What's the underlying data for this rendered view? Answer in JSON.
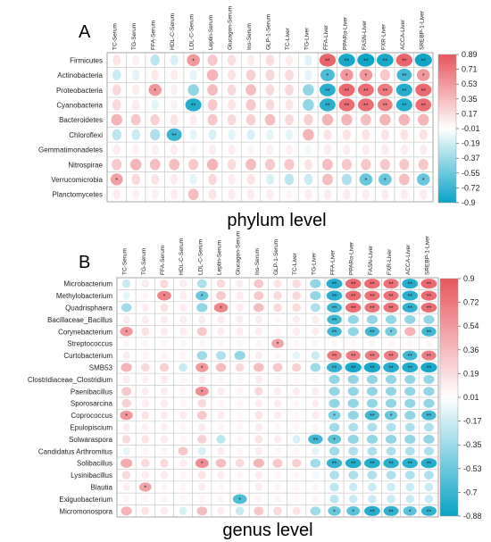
{
  "chart_data": [
    {
      "type": "heatmap",
      "panel_label": "A",
      "title": "phylum level",
      "columns": [
        "TC-Serum",
        "TG-Serum",
        "FFA-Serum",
        "HDL-C-Serum",
        "LDL-C-Serum",
        "Leptin-Serum",
        "Glucagon-Serum",
        "Ins-Serum",
        "GLP-1-Serum",
        "TC-Liver",
        "TG-Liver",
        "FFA-Liver",
        "PPARα-Liver",
        "FASN-Liver",
        "FXR-Liver",
        "ACCA-Liver",
        "SREBP-1-Liver"
      ],
      "rows": [
        "Firmicutes",
        "Actinobacteria",
        "Proteobacteria",
        "Cyanobacteria",
        "Bacteroidetes",
        "Chloroflexi",
        "Gemmatimonadetes",
        "Nitrospirae",
        "Verrucomicrobia",
        "Planctomycetes"
      ],
      "values": [
        [
          0.15,
          0.08,
          -0.25,
          -0.15,
          0.55,
          0.3,
          0.18,
          0.1,
          0.18,
          0.1,
          -0.12,
          0.82,
          -0.85,
          -0.88,
          -0.85,
          0.82,
          -0.88
        ],
        [
          -0.2,
          -0.1,
          0.12,
          0.1,
          -0.1,
          0.4,
          0.15,
          0.25,
          0.22,
          0.2,
          -0.1,
          -0.65,
          0.55,
          0.55,
          0.3,
          -0.7,
          0.55
        ],
        [
          0.2,
          0.1,
          0.55,
          0.08,
          -0.4,
          0.35,
          0.2,
          0.35,
          0.2,
          0.2,
          -0.4,
          -0.78,
          0.8,
          0.78,
          0.72,
          -0.8,
          0.8
        ],
        [
          0.2,
          0.1,
          -0.1,
          0.08,
          -0.8,
          0.3,
          0.15,
          0.3,
          0.2,
          0.15,
          -0.4,
          -0.78,
          0.78,
          0.78,
          0.7,
          -0.8,
          0.78
        ],
        [
          0.4,
          0.3,
          0.25,
          0.15,
          0.1,
          0.3,
          0.2,
          0.25,
          0.35,
          0.2,
          0.25,
          0.4,
          0.4,
          0.35,
          0.4,
          0.4,
          0.4
        ],
        [
          -0.25,
          -0.2,
          -0.3,
          -0.72,
          -0.1,
          -0.15,
          -0.1,
          -0.15,
          -0.1,
          -0.1,
          0.4,
          0.15,
          0.15,
          0.15,
          0.15,
          0.15,
          0.15
        ],
        [
          0.1,
          0.08,
          0.08,
          0.1,
          0.05,
          0.1,
          0.1,
          0.05,
          0.08,
          0.08,
          -0.05,
          0.1,
          0.1,
          0.1,
          0.1,
          0.1,
          0.1
        ],
        [
          0.3,
          0.4,
          0.35,
          0.35,
          0.3,
          0.4,
          0.2,
          0.35,
          0.3,
          0.3,
          0.15,
          0.35,
          0.3,
          0.3,
          0.3,
          0.3,
          0.3
        ],
        [
          0.5,
          0.2,
          0.15,
          0.1,
          -0.1,
          0.2,
          0.1,
          0.15,
          -0.15,
          -0.25,
          -0.2,
          0.35,
          -0.3,
          -0.55,
          -0.55,
          0.35,
          -0.55
        ],
        [
          0.1,
          0.08,
          0.08,
          0.1,
          0.35,
          0.15,
          0.1,
          0.1,
          0.1,
          0.05,
          0.1,
          0.1,
          0.1,
          0.1,
          0.1,
          0.1,
          0.1
        ]
      ],
      "color_scale": {
        "ticks": [
          0.89,
          0.71,
          0.53,
          0.35,
          0.17,
          -0.01,
          -0.19,
          -0.37,
          -0.55,
          -0.72,
          -0.9
        ],
        "range": [
          -0.9,
          0.89
        ],
        "negative_color": "#0aa3c7",
        "positive_color": "#e8565d",
        "neutral_color": "#ffffff"
      }
    },
    {
      "type": "heatmap",
      "panel_label": "B",
      "title": "genus level",
      "columns": [
        "TC-Serum",
        "TG-Serum",
        "FFA-Serum",
        "HDL-C-Serum",
        "LDL-C-Serum",
        "Leptin-Serum",
        "Glucagon-Serum",
        "Ins-Serum",
        "GLP-1-Serum",
        "TC-Liver",
        "TG-Liver",
        "FFA-Liver",
        "PPARα-Liver",
        "FASN-Liver",
        "FXR-Liver",
        "ACCA-Liver",
        "SREBP-1-Liver"
      ],
      "rows": [
        "Microbacterium",
        "Methylobacterium",
        "Quadrisphaera",
        "Bacillaceae_Bacillus",
        "Corynebacterium",
        "Streptococcus",
        "Curtobacterium",
        "SMB53",
        "Clostridiaceae_Clostridium",
        "Paenibacillus",
        "Sporosarcina",
        "Coprococcus",
        "Epulopiscium",
        "Solwaraspora",
        "Candidatus Arthromitus",
        "Solibacillus",
        "Lysinibacillus",
        "Blautia",
        "Exiguobacterium",
        "Micromonospora"
      ],
      "values": [
        [
          -0.2,
          0.1,
          0.2,
          0.1,
          -0.3,
          0.2,
          0.1,
          0.3,
          0.15,
          0.2,
          -0.4,
          -0.8,
          0.8,
          0.78,
          0.75,
          -0.8,
          0.8
        ],
        [
          -0.1,
          0.05,
          0.65,
          0.1,
          -0.55,
          0.3,
          0.1,
          0.3,
          0.2,
          0.2,
          -0.4,
          -0.78,
          0.78,
          0.75,
          0.75,
          -0.78,
          0.78
        ],
        [
          -0.35,
          0.1,
          0.15,
          0.1,
          -0.4,
          0.65,
          0.1,
          0.35,
          0.2,
          0.2,
          -0.3,
          -0.72,
          0.78,
          0.75,
          0.75,
          -0.75,
          0.78
        ],
        [
          0.1,
          0.1,
          0.1,
          0.1,
          0.1,
          0.1,
          0.1,
          0.1,
          0.05,
          0.1,
          0.1,
          -0.7,
          -0.4,
          -0.4,
          -0.4,
          -0.4,
          -0.4
        ],
        [
          0.55,
          0.15,
          0.1,
          0.1,
          0.3,
          0.1,
          0.1,
          0.1,
          0.05,
          0.1,
          0.1,
          -0.7,
          -0.4,
          -0.7,
          -0.5,
          0.4,
          -0.7
        ],
        [
          0.05,
          0.05,
          0.05,
          0.05,
          0.05,
          0.05,
          0.05,
          0.05,
          0.5,
          0.05,
          0.05,
          0.05,
          0.05,
          0.05,
          0.05,
          0.05,
          0.05
        ],
        [
          0.1,
          0.05,
          0.05,
          0.05,
          -0.35,
          -0.3,
          -0.4,
          0.1,
          0.05,
          -0.1,
          -0.2,
          0.7,
          0.7,
          0.7,
          0.7,
          -0.7,
          0.7
        ],
        [
          0.4,
          0.2,
          0.25,
          -0.2,
          0.55,
          0.35,
          0.2,
          0.35,
          0.3,
          0.25,
          -0.35,
          -0.75,
          -0.85,
          -0.85,
          -0.8,
          -0.8,
          -0.85
        ],
        [
          0.1,
          0.08,
          0.1,
          0.05,
          0.1,
          0.05,
          0.05,
          0.1,
          0.05,
          0.05,
          0.05,
          -0.4,
          -0.4,
          -0.4,
          -0.4,
          -0.4,
          -0.4
        ],
        [
          0.3,
          0.1,
          0.1,
          0.05,
          0.6,
          0.1,
          0.05,
          0.2,
          0.1,
          0.1,
          0.1,
          -0.4,
          -0.4,
          -0.4,
          -0.4,
          -0.4,
          -0.4
        ],
        [
          0.25,
          0.1,
          0.1,
          0.05,
          0.2,
          0.05,
          0.05,
          0.1,
          0.1,
          0.05,
          0.1,
          -0.4,
          -0.4,
          -0.4,
          -0.4,
          -0.4,
          -0.4
        ],
        [
          0.55,
          0.15,
          0.1,
          0.1,
          0.3,
          0.1,
          0.05,
          0.15,
          0.1,
          0.05,
          0.1,
          -0.5,
          -0.4,
          -0.7,
          -0.55,
          -0.4,
          -0.7
        ],
        [
          0.1,
          0.08,
          0.08,
          0.05,
          0.1,
          0.05,
          0.05,
          0.1,
          0.05,
          0.05,
          0.05,
          -0.35,
          -0.3,
          -0.3,
          -0.3,
          -0.3,
          -0.3
        ],
        [
          0.2,
          0.15,
          0.1,
          0.05,
          0.25,
          -0.25,
          0.05,
          0.15,
          0.1,
          -0.15,
          -0.7,
          -0.6,
          -0.4,
          -0.4,
          -0.4,
          -0.4,
          -0.4
        ],
        [
          -0.1,
          0.05,
          0.05,
          0.3,
          -0.15,
          0.1,
          0.05,
          0.1,
          0.05,
          0.05,
          -0.1,
          -0.35,
          -0.3,
          -0.3,
          -0.3,
          -0.3,
          -0.3
        ],
        [
          0.45,
          0.2,
          0.2,
          0.1,
          0.6,
          0.35,
          0.2,
          0.4,
          0.3,
          0.25,
          -0.35,
          -0.75,
          -0.8,
          -0.8,
          -0.78,
          -0.78,
          -0.8
        ],
        [
          0.2,
          0.1,
          0.1,
          0.05,
          0.15,
          0.1,
          0.05,
          0.1,
          0.05,
          0.05,
          -0.05,
          -0.3,
          -0.3,
          -0.3,
          -0.3,
          -0.3,
          -0.3
        ],
        [
          0.1,
          0.5,
          0.05,
          0.05,
          0.1,
          0.05,
          0.05,
          0.1,
          0.05,
          0.05,
          0.05,
          -0.25,
          -0.2,
          -0.2,
          -0.2,
          -0.2,
          -0.2
        ],
        [
          0.05,
          0.05,
          0.05,
          0.05,
          0.05,
          0.05,
          -0.65,
          0.05,
          0.05,
          0.05,
          0.05,
          -0.25,
          -0.2,
          -0.2,
          -0.2,
          -0.2,
          -0.2
        ],
        [
          0.4,
          0.15,
          0.1,
          -0.15,
          0.35,
          0.1,
          -0.2,
          0.3,
          0.2,
          0.15,
          -0.35,
          -0.55,
          -0.6,
          -0.8,
          -0.75,
          -0.6,
          -0.75
        ]
      ],
      "color_scale": {
        "ticks": [
          0.9,
          0.72,
          0.54,
          0.36,
          0.19,
          0.01,
          -0.17,
          -0.35,
          -0.53,
          -0.7,
          -0.88
        ],
        "range": [
          -0.88,
          0.9
        ],
        "negative_color": "#0aa3c7",
        "positive_color": "#e8565d",
        "neutral_color": "#ffffff"
      }
    }
  ]
}
